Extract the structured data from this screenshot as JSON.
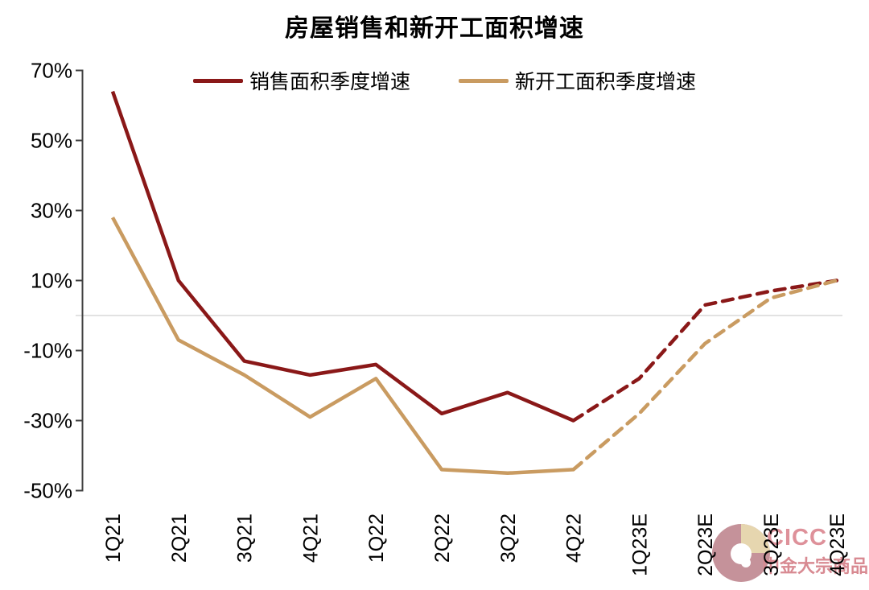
{
  "chart": {
    "title": "房屋销售和新开工面积增速",
    "watermark": {
      "brand": "CICC",
      "subbrand": "中金大宗商品"
    }
  },
  "chart_data": {
    "type": "line",
    "title": "房屋销售和新开工面积增速",
    "categories": [
      "1Q21",
      "2Q21",
      "3Q21",
      "4Q21",
      "1Q22",
      "2Q22",
      "3Q22",
      "4Q22",
      "1Q23E",
      "2Q23E",
      "3Q23E",
      "4Q23E"
    ],
    "series": [
      {
        "name": "销售面积季度增速",
        "color": "#8A1818",
        "values": [
          64,
          10,
          -13,
          -17,
          -14,
          -28,
          -22,
          -30,
          -18,
          3,
          7,
          10
        ],
        "dashed_from_index": 7
      },
      {
        "name": "新开工面积季度增速",
        "color": "#C99B61",
        "values": [
          28,
          -7,
          -17,
          -29,
          -18,
          -44,
          -45,
          -44,
          -28,
          -8,
          5,
          10
        ],
        "dashed_from_index": 7
      }
    ],
    "y_ticks": [
      70,
      50,
      30,
      10,
      -10,
      -30,
      -50
    ],
    "y_tick_suffix": "%",
    "ylim": [
      -50,
      70
    ],
    "zero_line": true,
    "zero_line_color": "#D9D9D9",
    "axis_color": "#404040",
    "grid": "zero-only",
    "legend_position": "top",
    "xlabel": "",
    "ylabel": ""
  }
}
